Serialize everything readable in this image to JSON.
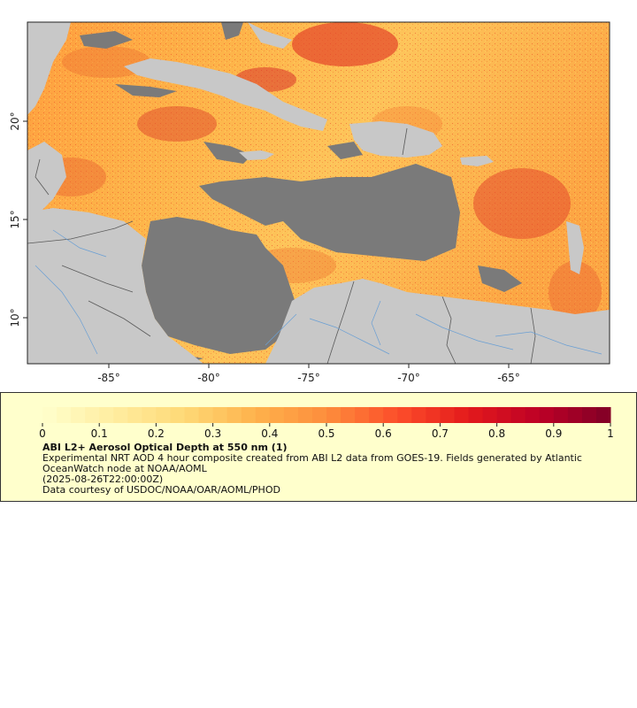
{
  "map": {
    "lon_ticks": [
      "-85°",
      "-80°",
      "-75°",
      "-70°",
      "-65°"
    ],
    "lat_ticks": [
      "20°",
      "15°",
      "10°"
    ],
    "colors": {
      "land": "#c8c8c8",
      "no_data": "#7a7a7a",
      "rivers": "#6a9fd4",
      "borders": "#5a5a5a",
      "background": "#ffffff"
    }
  },
  "legend": {
    "background": "#ffffcc",
    "colorbar_ticks": [
      "0",
      "0.1",
      "0.2",
      "0.3",
      "0.4",
      "0.5",
      "0.6",
      "0.7",
      "0.8",
      "0.9",
      "1"
    ],
    "colorbar_range": [
      0,
      1
    ],
    "colorbar_stops": [
      "#ffffcc",
      "#ffeda0",
      "#fed976",
      "#feb24c",
      "#fd8d3c",
      "#fc4e2a",
      "#e31a1c",
      "#bd0026",
      "#800026"
    ],
    "title": "ABI L2+ Aerosol Optical Depth at 550 nm (1)",
    "line1": "Experimental NRT AOD 4 hour composite created from ABI L2 data from GOES-19. Fields generated by Atlantic OceanWatch node at NOAA/AOML",
    "line2": "(2025-08-26T22:00:00Z)",
    "line3": "Data courtesy of USDOC/NOAA/OAR/AOML/PHOD"
  }
}
